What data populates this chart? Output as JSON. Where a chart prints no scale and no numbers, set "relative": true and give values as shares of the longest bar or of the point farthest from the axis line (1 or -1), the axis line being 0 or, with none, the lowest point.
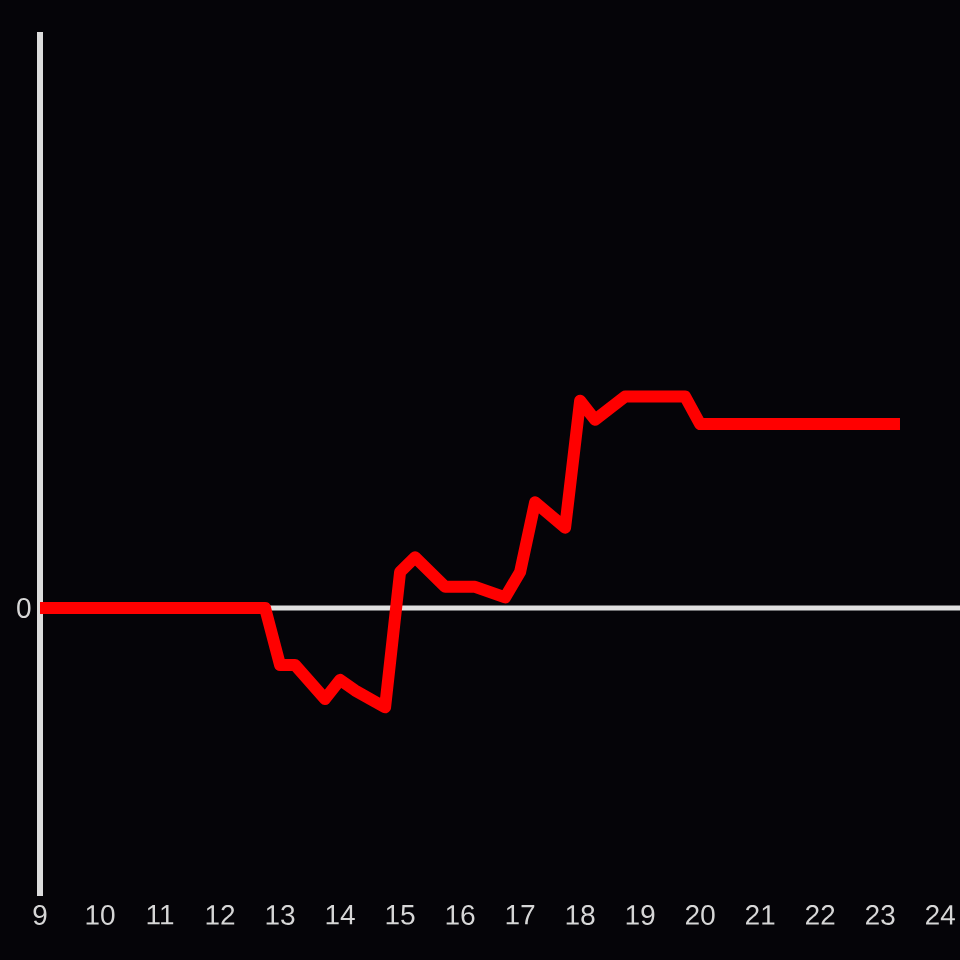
{
  "chart_data": {
    "type": "line",
    "relative": true,
    "x": [
      9,
      12.75,
      13,
      13.25,
      13.75,
      14,
      14.25,
      14.75,
      15,
      15.25,
      15.75,
      16.25,
      16.75,
      17,
      17.25,
      17.75,
      18,
      18.25,
      18.75,
      19.75,
      20,
      23.33
    ],
    "series": [
      {
        "color": "#ff0000",
        "values": [
          0,
          0,
          -0.27,
          -0.27,
          -0.43,
          -0.34,
          -0.39,
          -0.47,
          0.17,
          0.24,
          0.1,
          0.1,
          0.05,
          0.17,
          0.5,
          0.38,
          0.98,
          0.89,
          1,
          1,
          0.87,
          0.87
        ]
      }
    ],
    "xlim": [
      9,
      24.33
    ],
    "xticks": [
      9,
      10,
      11,
      12,
      13,
      14,
      15,
      16,
      17,
      18,
      19,
      20,
      21,
      22,
      23,
      24
    ],
    "ref_lines": [
      {
        "axis": "y",
        "value": 0,
        "label": "0",
        "color": "#e0e0e0"
      }
    ]
  }
}
